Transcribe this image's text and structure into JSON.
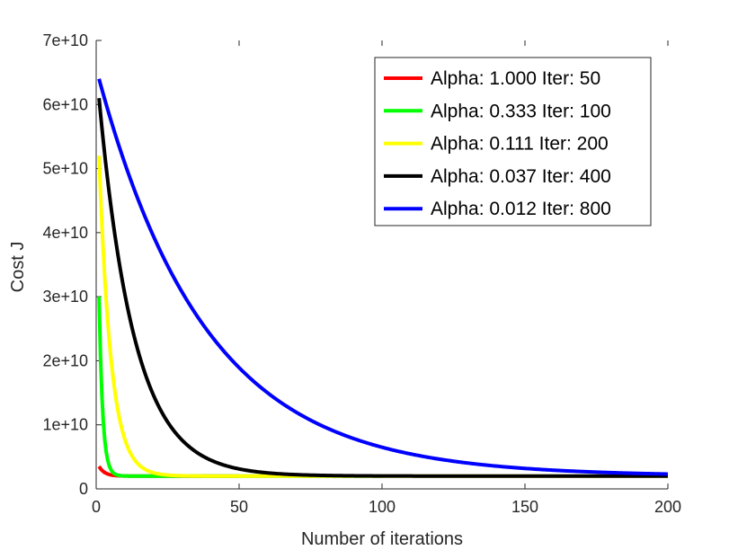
{
  "chart_data": {
    "type": "line",
    "title": "",
    "xlabel": "Number of iterations",
    "ylabel": "Cost J",
    "xlim": [
      0,
      200
    ],
    "ylim": [
      0,
      70000000000
    ],
    "x_ticks": [
      "0",
      "50",
      "100",
      "150",
      "200"
    ],
    "y_ticks": [
      "0",
      "1e+10",
      "2e+10",
      "3e+10",
      "4e+10",
      "5e+10",
      "6e+10",
      "7e+10"
    ],
    "grid": false,
    "legend_position": "top-right",
    "series": [
      {
        "name": "Alpha: 1.000 Iter: 50",
        "color": "#ff0000",
        "start": 3500000000,
        "floor": 2000000000,
        "decay": 0.5,
        "x_start": 1,
        "x_end": 50
      },
      {
        "name": "Alpha: 0.333 Iter: 100",
        "color": "#00ff00",
        "start": 30000000000,
        "floor": 2000000000,
        "decay": 0.8,
        "x_start": 1,
        "x_end": 100
      },
      {
        "name": "Alpha: 0.111 Iter: 200",
        "color": "#ffff00",
        "start": 52000000000,
        "floor": 2000000000,
        "decay": 0.24,
        "x_start": 1,
        "x_end": 200
      },
      {
        "name": "Alpha: 0.037 Iter: 400",
        "color": "#000000",
        "start": 61000000000,
        "floor": 2000000000,
        "decay": 0.081,
        "x_start": 1,
        "x_end": 200
      },
      {
        "name": "Alpha: 0.012 Iter: 800",
        "color": "#0000ff",
        "start": 64000000000,
        "floor": 2000000000,
        "decay": 0.0265,
        "x_start": 1,
        "x_end": 200
      }
    ]
  }
}
